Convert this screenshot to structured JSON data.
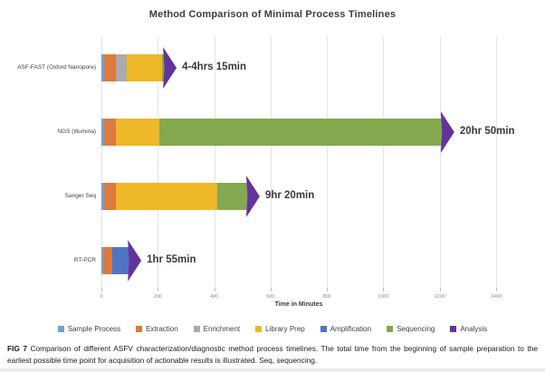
{
  "figure": {
    "caption_prefix": "FIG 7",
    "caption_text": " Comparison of different ASFV characterization/diagnostic method process timelines. The total time from the beginning of sample preparation to the earliest possible time point for acquisition of actionable results is illustrated. Seq, sequencing."
  },
  "chart_data": {
    "type": "bar",
    "variant": "horizontal-stacked",
    "title": "Method Comparison of Minimal Process Timelines",
    "xlabel": "Time in Minutes",
    "unit": "minutes",
    "xlim": [
      0,
      1400
    ],
    "xticks": [
      0,
      200,
      400,
      600,
      800,
      1000,
      1200,
      1400
    ],
    "grid": "vertical",
    "legend_position": "bottom",
    "legend": [
      {
        "label": "Sample Process",
        "color": "#6FA0DB"
      },
      {
        "label": "Extraction",
        "color": "#DC7B3D"
      },
      {
        "label": "Enrichment",
        "color": "#ABABAB"
      },
      {
        "label": "Library Prep",
        "color": "#EEB829"
      },
      {
        "label": "Amplification",
        "color": "#4E76C4"
      },
      {
        "label": "Sequencing",
        "color": "#84A94E"
      },
      {
        "label": "Analysis",
        "color": "#63339E"
      }
    ],
    "bars": [
      {
        "category": "ASF-FAST (Oxford Nanopore)",
        "total_label": "4-4hrs 15min",
        "total_minutes": 255,
        "segments": [
          {
            "stage": "Sample Process",
            "minutes": 10
          },
          {
            "stage": "Extraction",
            "minutes": 40
          },
          {
            "stage": "Enrichment",
            "minutes": 40
          },
          {
            "stage": "Library Prep",
            "minutes": 125
          },
          {
            "stage": "Sequencing",
            "minutes": 10
          },
          {
            "stage": "Analysis",
            "minutes": 30,
            "render": "arrow"
          }
        ]
      },
      {
        "category": "NGS (Illumina)",
        "total_label": "20hr 50min",
        "total_minutes": 1250,
        "segments": [
          {
            "stage": "Sample Process",
            "minutes": 10
          },
          {
            "stage": "Extraction",
            "minutes": 40
          },
          {
            "stage": "Library Prep",
            "minutes": 155
          },
          {
            "stage": "Sequencing",
            "minutes": 1005
          },
          {
            "stage": "Analysis",
            "minutes": 40,
            "render": "arrow"
          }
        ]
      },
      {
        "category": "Sanger Seq",
        "total_label": "9hr 20min",
        "total_minutes": 560,
        "segments": [
          {
            "stage": "Sample Process",
            "minutes": 10
          },
          {
            "stage": "Extraction",
            "minutes": 40
          },
          {
            "stage": "Library Prep",
            "minutes": 360
          },
          {
            "stage": "Sequencing",
            "minutes": 110
          },
          {
            "stage": "Analysis",
            "minutes": 40,
            "render": "arrow"
          }
        ]
      },
      {
        "category": "RT-PCR",
        "total_label": "1hr 55min",
        "total_minutes": 115,
        "segments": [
          {
            "stage": "Sample Process",
            "minutes": 5
          },
          {
            "stage": "Extraction",
            "minutes": 35
          },
          {
            "stage": "Amplification",
            "minutes": 60
          },
          {
            "stage": "Analysis",
            "minutes": 15,
            "render": "arrow"
          }
        ]
      }
    ]
  }
}
